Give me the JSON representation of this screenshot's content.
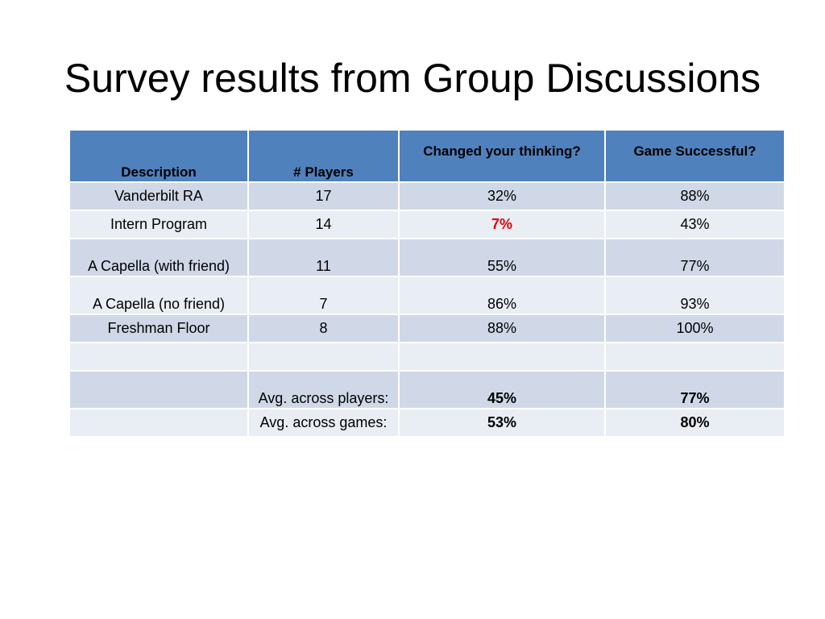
{
  "slide": {
    "title": "Survey results from Group Discussions"
  },
  "table": {
    "headers": [
      "Description",
      "# Players",
      "Changed your thinking?",
      "Game Successful?"
    ],
    "rows": [
      {
        "description": "Vanderbilt RA",
        "players": "17",
        "changed": "32%",
        "successful": "88%"
      },
      {
        "description": "Intern Program",
        "players": "14",
        "changed": "7%",
        "successful": "43%"
      },
      {
        "description": "A Capella (with friend)",
        "players": "11",
        "changed": "55%",
        "successful": "77%"
      },
      {
        "description": "A Capella (no friend)",
        "players": "7",
        "changed": "86%",
        "successful": "93%"
      },
      {
        "description": "Freshman Floor",
        "players": "8",
        "changed": "88%",
        "successful": "100%"
      }
    ],
    "summary": [
      {
        "label": "Avg. across players:",
        "changed": "45%",
        "successful": "77%"
      },
      {
        "label": "Avg. across games:",
        "changed": "53%",
        "successful": "80%"
      }
    ]
  },
  "colors": {
    "header_bg": "#4f81bd",
    "row_dark": "#d0d8e8",
    "row_light": "#e9edf4",
    "highlight_red": "#e00000"
  }
}
